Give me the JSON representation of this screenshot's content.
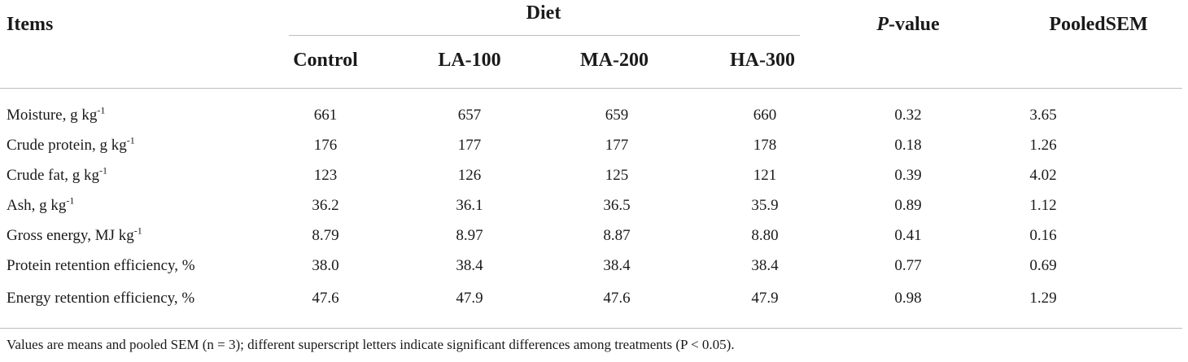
{
  "table": {
    "header": {
      "items": "Items",
      "diet_group": "Diet",
      "diet_columns": [
        "Control",
        "LA-100",
        "MA-200",
        "HA-300"
      ],
      "pvalue_italic": "P",
      "pvalue_rest": "-value",
      "pooled_sem": "PooledSEM"
    },
    "rows": [
      {
        "label": "Moisture, g kg",
        "sup": "-1",
        "values": [
          "661",
          "657",
          "659",
          "660"
        ],
        "p": "0.32",
        "sem": "3.65"
      },
      {
        "label": "Crude protein, g kg",
        "sup": "-1",
        "values": [
          "176",
          "177",
          "177",
          "178"
        ],
        "p": "0.18",
        "sem": "1.26"
      },
      {
        "label": "Crude fat, g kg",
        "sup": "-1",
        "values": [
          "123",
          "126",
          "125",
          "121"
        ],
        "p": "0.39",
        "sem": "4.02"
      },
      {
        "label": "Ash, g kg",
        "sup": "-1",
        "values": [
          "36.2",
          "36.1",
          "36.5",
          "35.9"
        ],
        "p": "0.89",
        "sem": "1.12"
      },
      {
        "label": "Gross energy, MJ kg",
        "sup": "-1",
        "values": [
          "8.79",
          "8.97",
          "8.87",
          "8.80"
        ],
        "p": "0.41",
        "sem": "0.16"
      },
      {
        "label": "Protein retention efficiency, %",
        "sup": "",
        "values": [
          "38.0",
          "38.4",
          "38.4",
          "38.4"
        ],
        "p": "0.77",
        "sem": "0.69"
      },
      {
        "label": "Energy retention efficiency, %",
        "sup": "",
        "values": [
          "47.6",
          "47.9",
          "47.6",
          "47.9"
        ],
        "p": "0.98",
        "sem": "1.29"
      }
    ],
    "footnote": "Values are means and pooled SEM (n = 3); different superscript letters indicate significant differences among treatments (P < 0.05)."
  }
}
